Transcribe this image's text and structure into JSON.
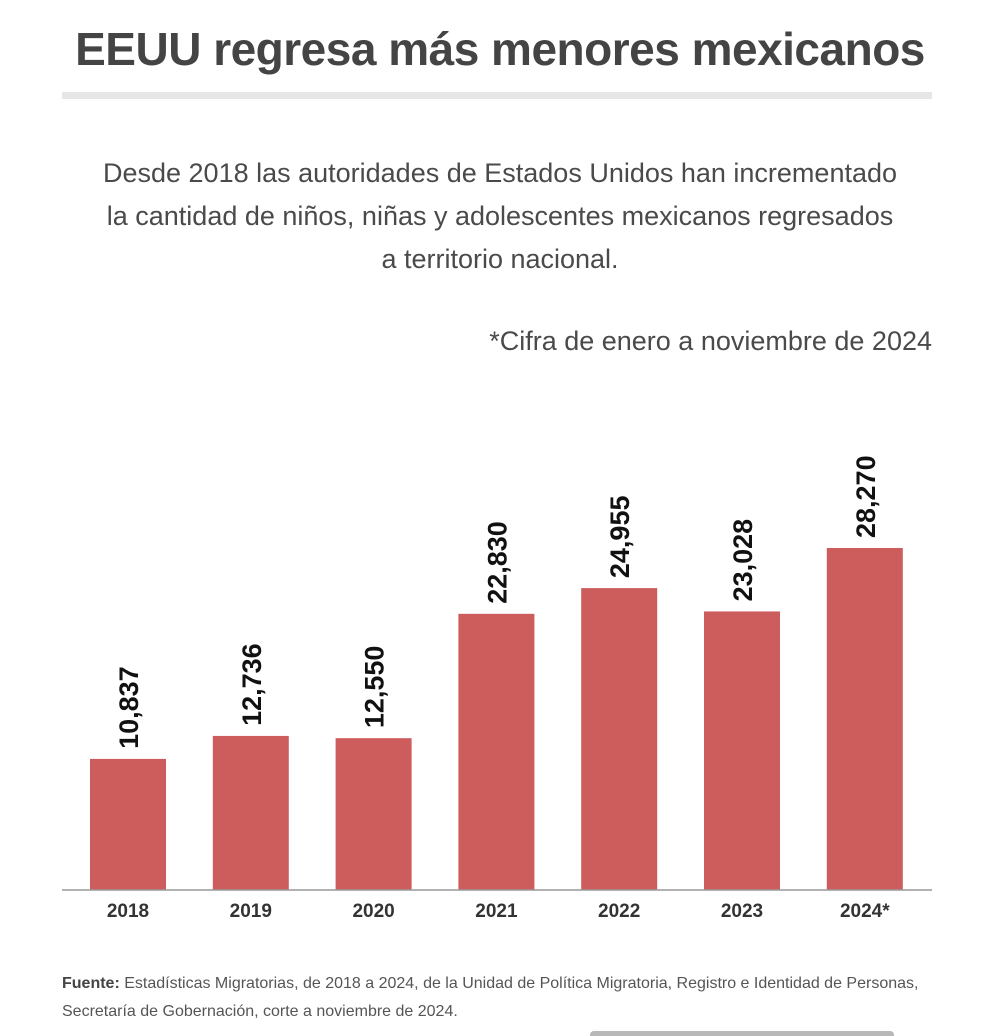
{
  "header": {
    "title": "EEUU regresa más menores mexicanos",
    "subtitle": "Desde 2018 las autoridades de Estados Unidos han incrementado la cantidad de niños, niñas y adolescentes mexicanos regresados a territorio nacional.",
    "note": "*Cifra de enero a noviembre de 2024"
  },
  "chart_data": {
    "type": "bar",
    "categories": [
      "2018",
      "2019",
      "2020",
      "2021",
      "2022",
      "2023",
      "2024*"
    ],
    "values": [
      10837,
      12736,
      12550,
      22830,
      24955,
      23028,
      28270
    ],
    "value_labels": [
      "10,837",
      "12,736",
      "12,550",
      "22,830",
      "24,955",
      "23,028",
      "28,270"
    ],
    "ylim": [
      0,
      28270
    ],
    "grid": false,
    "bar_color": "#cd5c5c"
  },
  "footer": {
    "source_label": "Fuente:",
    "source_text": " Estadísticas Migratorias, de 2018 a 2024, de la Unidad de Política Migratoria, Registro e Identidad de Personas, Secretaría de Gobernación, corte a noviembre de 2024."
  }
}
